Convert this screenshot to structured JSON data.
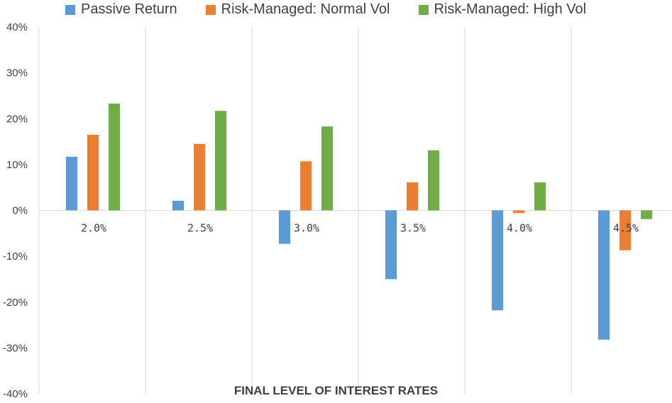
{
  "chart_data": {
    "type": "bar",
    "categories": [
      "2.0%",
      "2.5%",
      "3.0%",
      "3.5%",
      "4.0%",
      "4.5%"
    ],
    "series": [
      {
        "name": "Passive Return",
        "color": "#5B9BD5",
        "values": [
          11.7,
          2.1,
          -7.3,
          -15.0,
          -21.8,
          -28.2
        ]
      },
      {
        "name": "Risk-Managed: Normal Vol",
        "color": "#ED7D31",
        "values": [
          16.5,
          14.5,
          10.7,
          6.1,
          -0.6,
          -8.7
        ]
      },
      {
        "name": "Risk-Managed: High Vol",
        "color": "#70AD47",
        "values": [
          23.3,
          21.7,
          18.3,
          13.1,
          6.1,
          -1.9
        ]
      }
    ],
    "yticks": [
      "40%",
      "30%",
      "20%",
      "10%",
      "0%",
      "-10%",
      "-20%",
      "-30%",
      "-40%"
    ],
    "xlabel": "FINAL LEVEL OF INTEREST RATES",
    "ylabel": "",
    "ylim": [
      -40,
      40
    ],
    "grid": "vertical category separators",
    "legend": "top"
  }
}
